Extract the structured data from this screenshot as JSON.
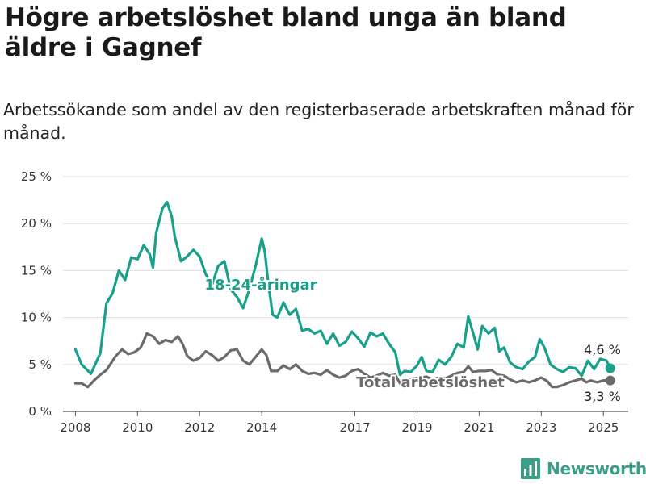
{
  "title": "Högre arbetslöshet bland unga än bland äldre i Gagnef",
  "subtitle": "Arbetssökande som andel av den registerbaserade arbetskraften månad för månad.",
  "brand": {
    "name": "Newsworthy",
    "icon": "bar-chart-logo-icon",
    "color": "#3a9e88"
  },
  "chart_data": {
    "type": "line",
    "y_unit": "%",
    "ylim": [
      0,
      25
    ],
    "y_ticks": [
      0,
      5,
      10,
      15,
      20,
      25
    ],
    "y_tick_labels": [
      "0 %",
      "5 %",
      "10 %",
      "15 %",
      "20 %",
      "25 %"
    ],
    "xlim": [
      2007.6,
      2025.8
    ],
    "x_ticks": [
      2008,
      2010,
      2012,
      2014,
      2017,
      2019,
      2021,
      2023,
      2025
    ],
    "x_tick_labels": [
      "2008",
      "2010",
      "2012",
      "2014",
      "2017",
      "2019",
      "2021",
      "2023",
      "2025"
    ],
    "grid": true,
    "series": [
      {
        "name": "18-24-åringar",
        "color": "#17a08a",
        "end_label": "4,6 %",
        "points": [
          [
            2008.0,
            6.6
          ],
          [
            2008.2,
            5.0
          ],
          [
            2008.5,
            4.0
          ],
          [
            2008.8,
            6.2
          ],
          [
            2009.0,
            11.5
          ],
          [
            2009.2,
            12.6
          ],
          [
            2009.4,
            15.0
          ],
          [
            2009.6,
            14.0
          ],
          [
            2009.8,
            16.4
          ],
          [
            2010.0,
            16.2
          ],
          [
            2010.2,
            17.7
          ],
          [
            2010.4,
            16.7
          ],
          [
            2010.5,
            15.3
          ],
          [
            2010.6,
            19.0
          ],
          [
            2010.8,
            21.6
          ],
          [
            2010.95,
            22.3
          ],
          [
            2011.1,
            20.8
          ],
          [
            2011.2,
            18.6
          ],
          [
            2011.4,
            16.0
          ],
          [
            2011.6,
            16.5
          ],
          [
            2011.8,
            17.2
          ],
          [
            2012.0,
            16.5
          ],
          [
            2012.2,
            14.6
          ],
          [
            2012.4,
            13.5
          ],
          [
            2012.6,
            15.5
          ],
          [
            2012.8,
            16.0
          ],
          [
            2013.0,
            13.0
          ],
          [
            2013.2,
            12.2
          ],
          [
            2013.4,
            11.0
          ],
          [
            2013.6,
            13.0
          ],
          [
            2013.8,
            15.5
          ],
          [
            2014.0,
            18.4
          ],
          [
            2014.1,
            17.0
          ],
          [
            2014.2,
            14.0
          ],
          [
            2014.35,
            10.3
          ],
          [
            2014.5,
            10.0
          ],
          [
            2014.7,
            11.6
          ],
          [
            2014.9,
            10.3
          ],
          [
            2015.1,
            10.9
          ],
          [
            2015.3,
            8.6
          ],
          [
            2015.5,
            8.8
          ],
          [
            2015.7,
            8.3
          ],
          [
            2015.9,
            8.6
          ],
          [
            2016.1,
            7.2
          ],
          [
            2016.3,
            8.3
          ],
          [
            2016.5,
            7.0
          ],
          [
            2016.7,
            7.4
          ],
          [
            2016.9,
            8.5
          ],
          [
            2017.1,
            7.8
          ],
          [
            2017.3,
            6.9
          ],
          [
            2017.5,
            8.4
          ],
          [
            2017.7,
            8.0
          ],
          [
            2017.9,
            8.3
          ],
          [
            2018.1,
            7.2
          ],
          [
            2018.3,
            6.3
          ],
          [
            2018.45,
            3.9
          ],
          [
            2018.6,
            4.3
          ],
          [
            2018.8,
            4.2
          ],
          [
            2019.0,
            4.9
          ],
          [
            2019.15,
            5.8
          ],
          [
            2019.3,
            4.3
          ],
          [
            2019.5,
            4.2
          ],
          [
            2019.7,
            5.5
          ],
          [
            2019.9,
            5.0
          ],
          [
            2020.1,
            5.8
          ],
          [
            2020.3,
            7.2
          ],
          [
            2020.5,
            6.8
          ],
          [
            2020.65,
            10.1
          ],
          [
            2020.8,
            8.4
          ],
          [
            2020.95,
            6.6
          ],
          [
            2021.1,
            9.1
          ],
          [
            2021.3,
            8.3
          ],
          [
            2021.5,
            8.9
          ],
          [
            2021.65,
            6.4
          ],
          [
            2021.8,
            6.8
          ],
          [
            2022.0,
            5.2
          ],
          [
            2022.2,
            4.7
          ],
          [
            2022.4,
            4.5
          ],
          [
            2022.6,
            5.3
          ],
          [
            2022.8,
            5.8
          ],
          [
            2022.95,
            7.7
          ],
          [
            2023.1,
            6.8
          ],
          [
            2023.3,
            5.0
          ],
          [
            2023.5,
            4.5
          ],
          [
            2023.7,
            4.2
          ],
          [
            2023.9,
            4.7
          ],
          [
            2024.1,
            4.6
          ],
          [
            2024.3,
            3.8
          ],
          [
            2024.5,
            5.4
          ],
          [
            2024.7,
            4.5
          ],
          [
            2024.9,
            5.6
          ],
          [
            2025.1,
            5.4
          ],
          [
            2025.22,
            4.6
          ]
        ]
      },
      {
        "name": "Total arbetslöshet",
        "color": "#6b6b6b",
        "end_label": "3,3 %",
        "points": [
          [
            2008.0,
            3.0
          ],
          [
            2008.2,
            3.0
          ],
          [
            2008.4,
            2.6
          ],
          [
            2008.6,
            3.3
          ],
          [
            2008.8,
            3.9
          ],
          [
            2009.0,
            4.4
          ],
          [
            2009.3,
            5.9
          ],
          [
            2009.5,
            6.6
          ],
          [
            2009.7,
            6.1
          ],
          [
            2009.9,
            6.3
          ],
          [
            2010.1,
            6.8
          ],
          [
            2010.2,
            7.5
          ],
          [
            2010.3,
            8.3
          ],
          [
            2010.5,
            8.0
          ],
          [
            2010.7,
            7.2
          ],
          [
            2010.9,
            7.6
          ],
          [
            2011.1,
            7.4
          ],
          [
            2011.3,
            8.0
          ],
          [
            2011.45,
            7.2
          ],
          [
            2011.6,
            5.9
          ],
          [
            2011.8,
            5.4
          ],
          [
            2012.0,
            5.7
          ],
          [
            2012.2,
            6.4
          ],
          [
            2012.4,
            6.0
          ],
          [
            2012.6,
            5.4
          ],
          [
            2012.8,
            5.8
          ],
          [
            2013.0,
            6.5
          ],
          [
            2013.2,
            6.6
          ],
          [
            2013.4,
            5.4
          ],
          [
            2013.6,
            5.0
          ],
          [
            2013.8,
            5.8
          ],
          [
            2014.0,
            6.6
          ],
          [
            2014.15,
            6.0
          ],
          [
            2014.3,
            4.3
          ],
          [
            2014.5,
            4.3
          ],
          [
            2014.7,
            4.9
          ],
          [
            2014.9,
            4.5
          ],
          [
            2015.1,
            5.0
          ],
          [
            2015.3,
            4.3
          ],
          [
            2015.5,
            4.0
          ],
          [
            2015.7,
            4.1
          ],
          [
            2015.9,
            3.9
          ],
          [
            2016.1,
            4.4
          ],
          [
            2016.3,
            3.9
          ],
          [
            2016.5,
            3.6
          ],
          [
            2016.7,
            3.8
          ],
          [
            2016.9,
            4.3
          ],
          [
            2017.1,
            4.5
          ],
          [
            2017.3,
            4.0
          ],
          [
            2017.5,
            3.6
          ],
          [
            2017.7,
            3.8
          ],
          [
            2017.9,
            4.1
          ],
          [
            2018.1,
            3.8
          ],
          [
            2018.3,
            3.9
          ],
          [
            2018.45,
            3.0
          ],
          [
            2018.7,
            3.3
          ],
          [
            2018.9,
            3.5
          ],
          [
            2019.1,
            3.6
          ],
          [
            2019.3,
            3.7
          ],
          [
            2019.5,
            3.4
          ],
          [
            2019.7,
            3.6
          ],
          [
            2019.9,
            3.5
          ],
          [
            2020.1,
            3.8
          ],
          [
            2020.3,
            4.1
          ],
          [
            2020.5,
            4.2
          ],
          [
            2020.65,
            4.8
          ],
          [
            2020.8,
            4.2
          ],
          [
            2021.0,
            4.3
          ],
          [
            2021.2,
            4.3
          ],
          [
            2021.4,
            4.4
          ],
          [
            2021.6,
            3.9
          ],
          [
            2021.8,
            3.8
          ],
          [
            2022.0,
            3.4
          ],
          [
            2022.2,
            3.1
          ],
          [
            2022.4,
            3.3
          ],
          [
            2022.6,
            3.1
          ],
          [
            2022.8,
            3.3
          ],
          [
            2023.0,
            3.6
          ],
          [
            2023.2,
            3.2
          ],
          [
            2023.35,
            2.6
          ],
          [
            2023.5,
            2.6
          ],
          [
            2023.7,
            2.8
          ],
          [
            2023.9,
            3.1
          ],
          [
            2024.1,
            3.3
          ],
          [
            2024.3,
            3.5
          ],
          [
            2024.45,
            3.1
          ],
          [
            2024.6,
            3.3
          ],
          [
            2024.8,
            3.1
          ],
          [
            2025.0,
            3.3
          ],
          [
            2025.22,
            3.3
          ]
        ]
      }
    ]
  }
}
